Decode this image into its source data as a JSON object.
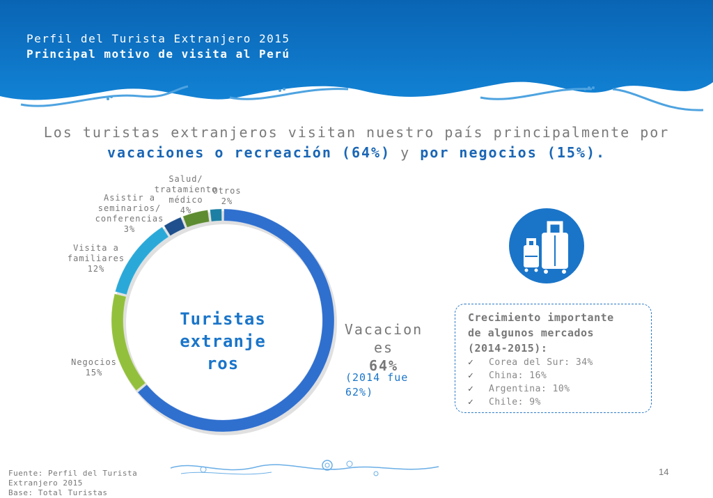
{
  "header": {
    "title": "Perfil del Turista Extranjero 2015",
    "subtitle": "Principal motivo de visita al Perú"
  },
  "headline": {
    "line1": "Los turistas extranjeros visitan nuestro país principalmente por",
    "strong1": "vacaciones o recreación (64%)",
    "middle": " y ",
    "strong2": "por negocios (15%)",
    "end": "."
  },
  "chart_data": {
    "type": "pie",
    "donut": true,
    "center_label": "Turistas extranjeros",
    "categories": [
      "Vacaciones",
      "Negocios",
      "Visita a familiares",
      "Asistir a seminarios/ conferencias",
      "Salud/ tratamiento médico",
      "Otros"
    ],
    "values": [
      64,
      15,
      12,
      3,
      4,
      2
    ],
    "unit": "%",
    "colors": [
      "#2f6fce",
      "#93c03c",
      "#2aa9d9",
      "#1f4f8c",
      "#5e8c31",
      "#1c7fa3"
    ],
    "labels": {
      "vacaciones": {
        "l1": "Vacacion",
        "l2": "es",
        "l3": "64%"
      },
      "negocios": {
        "l1": "Negocios",
        "l2": "15%"
      },
      "familiares": {
        "l1": "Visita a",
        "l2": "familiares",
        "l3": "12%"
      },
      "seminarios": {
        "l1": "Asistir a",
        "l2": "seminarios/",
        "l3": "conferencias",
        "l4": "3%"
      },
      "salud": {
        "l1": "Salud/",
        "l2": "tratamiento",
        "l3": "médico",
        "l4": "4%"
      },
      "otros": {
        "l1": "Otros",
        "l2": "2%"
      }
    },
    "center_lines": [
      "Turistas",
      "extranje",
      "ros"
    ],
    "note": {
      "l1": "(2014 fue",
      "l2": "62%)"
    }
  },
  "growth_box": {
    "title_l1": "Crecimiento importante",
    "title_l2": "de algunos mercados",
    "title_l3": "(2014-2015):",
    "items": [
      "Corea del Sur: 34%",
      "China: 16%",
      "Argentina: 10%",
      "Chile: 9%"
    ]
  },
  "footer": {
    "source_l1": "Fuente: Perfil del Turista",
    "source_l2": "Extranjero 2015",
    "source_l3": "Base: Total Turistas",
    "page": "14"
  },
  "icons": {
    "luggage": "luggage-icon",
    "check": "✓"
  },
  "colors": {
    "header_blue": "#0b6fbf",
    "accent": "#1a66b5"
  }
}
